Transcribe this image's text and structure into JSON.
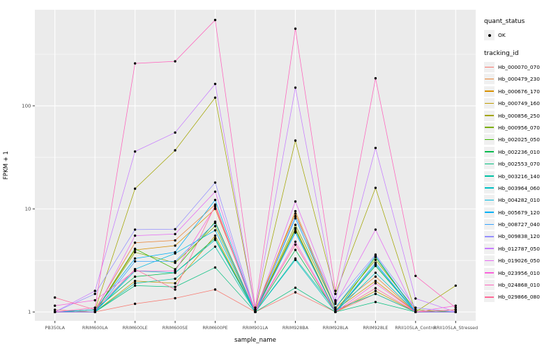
{
  "chart_data": {
    "type": "line",
    "title": "",
    "xlabel": "sample_name",
    "ylabel": "FPKM + 1",
    "y_scale": "log10",
    "ylim": [
      0.82,
      855
    ],
    "y_major_ticks": [
      1,
      10,
      100
    ],
    "y_minor_gridlines": [
      3.1623,
      31.623,
      316.23
    ],
    "x_categories": [
      "PB350LA",
      "RRIM600LA",
      "RRIM600LE",
      "RRIM600SE",
      "RRIM600PE",
      "RRIM901LA",
      "RRIM928BA",
      "RRIM928LA",
      "RRIM928LE",
      "RRII105LA_Control",
      "RRII105LA_Stressed"
    ],
    "legend": {
      "quant_status_title": "quant_status",
      "quant_status_items": [
        {
          "label": "OK",
          "marker": "point"
        }
      ],
      "tracking_id_title": "tracking_id"
    },
    "colors": {
      "panel_background": "#EBEBEB",
      "gridline": "#FFFFFF",
      "tick_label": "#4D4D4D",
      "axis_title": "#000000",
      "point": "#000000",
      "legend_key_background": "#F0F0F0"
    },
    "series": [
      {
        "name": "Hb_000070_070",
        "color": "#F8766D",
        "values": [
          1.05,
          1.0,
          1.2,
          1.36,
          1.65,
          1.0,
          1.55,
          1.0,
          1.5,
          1.0,
          1.0
        ]
      },
      {
        "name": "Hb_000479_230",
        "color": "#EA8331",
        "values": [
          1.0,
          1.05,
          4.7,
          4.95,
          11.0,
          1.0,
          9.5,
          1.1,
          2.2,
          1.0,
          1.05
        ]
      },
      {
        "name": "Hb_000676_170",
        "color": "#D89000",
        "values": [
          1.0,
          1.0,
          4.0,
          4.4,
          10.0,
          1.05,
          9.0,
          1.05,
          2.0,
          1.0,
          1.0
        ]
      },
      {
        "name": "Hb_000749_160",
        "color": "#C09B00",
        "values": [
          1.0,
          1.0,
          2.0,
          1.9,
          5.5,
          1.0,
          6.5,
          1.0,
          1.6,
          1.0,
          1.05
        ]
      },
      {
        "name": "Hb_000856_250",
        "color": "#A3A500",
        "values": [
          1.0,
          1.05,
          15.7,
          37.0,
          120.0,
          1.05,
          46.0,
          1.5,
          16.0,
          1.0,
          1.8
        ]
      },
      {
        "name": "Hb_000956_070",
        "color": "#7CAE00",
        "values": [
          1.0,
          1.0,
          3.8,
          3.0,
          6.8,
          1.0,
          7.0,
          1.1,
          3.2,
          1.05,
          1.0
        ]
      },
      {
        "name": "Hb_002025_050",
        "color": "#39B600",
        "values": [
          1.0,
          1.0,
          4.1,
          2.6,
          7.5,
          1.0,
          6.3,
          1.0,
          3.4,
          1.0,
          1.0
        ]
      },
      {
        "name": "Hb_002236_010",
        "color": "#00BB4E",
        "values": [
          1.0,
          1.05,
          2.2,
          2.4,
          5.2,
          1.0,
          4.0,
          1.0,
          2.8,
          1.0,
          1.0
        ]
      },
      {
        "name": "Hb_002553_070",
        "color": "#00BF7D",
        "values": [
          1.0,
          1.0,
          1.8,
          1.75,
          2.7,
          1.0,
          1.72,
          1.0,
          1.25,
          1.0,
          1.0
        ]
      },
      {
        "name": "Hb_003216_140",
        "color": "#00C1A3",
        "values": [
          1.0,
          1.0,
          1.9,
          2.1,
          4.3,
          1.0,
          3.3,
          1.05,
          1.5,
          1.0,
          1.0
        ]
      },
      {
        "name": "Hb_003964_060",
        "color": "#00BFC4",
        "values": [
          1.0,
          1.0,
          2.5,
          2.4,
          5.0,
          1.0,
          3.2,
          1.0,
          2.4,
          1.0,
          1.0
        ]
      },
      {
        "name": "Hb_004282_010",
        "color": "#00BAE0",
        "values": [
          1.0,
          1.0,
          2.6,
          3.7,
          6.2,
          1.0,
          5.9,
          1.0,
          2.9,
          1.0,
          1.0
        ]
      },
      {
        "name": "Hb_005679_120",
        "color": "#00B0F6",
        "values": [
          1.0,
          1.05,
          3.3,
          3.8,
          12.2,
          1.0,
          8.1,
          1.1,
          3.5,
          1.0,
          1.0
        ]
      },
      {
        "name": "Hb_008727_040",
        "color": "#35A2FF",
        "values": [
          1.0,
          1.0,
          3.1,
          3.1,
          7.3,
          1.0,
          6.0,
          1.0,
          3.0,
          1.0,
          1.0
        ]
      },
      {
        "name": "Hb_009838_120",
        "color": "#9590FF",
        "values": [
          1.0,
          1.5,
          6.3,
          6.35,
          18.0,
          1.0,
          8.5,
          1.25,
          3.6,
          1.1,
          1.0
        ]
      },
      {
        "name": "Hb_012787_050",
        "color": "#C77CFF",
        "values": [
          1.0,
          1.6,
          36.0,
          55.0,
          163.0,
          1.05,
          150.0,
          1.3,
          39.0,
          1.35,
          1.0
        ]
      },
      {
        "name": "Hb_019026_050",
        "color": "#E76BF3",
        "values": [
          1.0,
          1.0,
          5.5,
          5.7,
          14.7,
          1.0,
          11.8,
          1.2,
          6.3,
          1.0,
          1.0
        ]
      },
      {
        "name": "Hb_023956_010",
        "color": "#FA62DB",
        "values": [
          1.15,
          1.3,
          2.5,
          2.5,
          10.5,
          1.0,
          4.8,
          1.0,
          1.9,
          1.0,
          1.15
        ]
      },
      {
        "name": "Hb_024868_010",
        "color": "#FF62BC",
        "values": [
          1.0,
          1.1,
          258.0,
          270.0,
          680.0,
          1.1,
          560.0,
          1.6,
          185.0,
          2.24,
          1.1
        ]
      },
      {
        "name": "Hb_029866_080",
        "color": "#FF6A98",
        "values": [
          1.38,
          1.05,
          2.6,
          1.65,
          10.8,
          1.0,
          4.5,
          1.0,
          1.7,
          1.0,
          1.05
        ]
      }
    ]
  }
}
